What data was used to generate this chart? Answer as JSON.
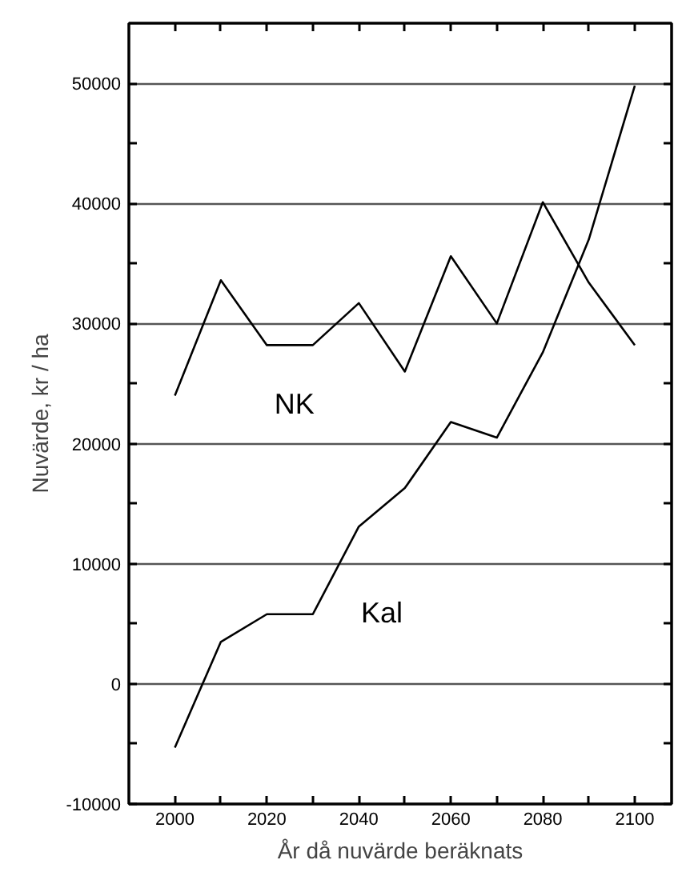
{
  "chart_data": {
    "type": "line",
    "xlabel": "År då nuvärde beräknats",
    "ylabel": "Nuvärde, kr / ha",
    "x": [
      2000,
      2010,
      2020,
      2030,
      2040,
      2050,
      2060,
      2070,
      2080,
      2090,
      2100
    ],
    "series": [
      {
        "name": "NK",
        "color": "#000000",
        "values": [
          24000,
          33600,
          28200,
          28200,
          31700,
          26000,
          35600,
          30000,
          40100,
          33400,
          28200
        ]
      },
      {
        "name": "Kal",
        "color": "#000000",
        "values": [
          -5300,
          3500,
          5800,
          5800,
          13100,
          16300,
          21800,
          20500,
          27600,
          37000,
          49800
        ]
      }
    ],
    "xlim": [
      1990,
      2108
    ],
    "ylim": [
      -10000,
      55000
    ],
    "xticks": [
      2000,
      {
        "value": 2010,
        "label": null
      },
      2020,
      {
        "value": 2030,
        "label": null
      },
      2040,
      {
        "value": 2050,
        "label": null
      },
      2060,
      {
        "value": 2070,
        "label": null
      },
      2080,
      {
        "value": 2090,
        "label": null
      },
      2100
    ],
    "yticks": [
      -10000,
      {
        "value": -5000,
        "label": null
      },
      0,
      {
        "value": 5000,
        "label": null
      },
      10000,
      {
        "value": 15000,
        "label": null
      },
      20000,
      {
        "value": 25000,
        "label": null
      },
      30000,
      {
        "value": 35000,
        "label": null
      },
      40000,
      {
        "value": 45000,
        "label": null
      },
      50000
    ],
    "grid": "y",
    "legend": false,
    "marker": "none",
    "line_style": "solid"
  }
}
